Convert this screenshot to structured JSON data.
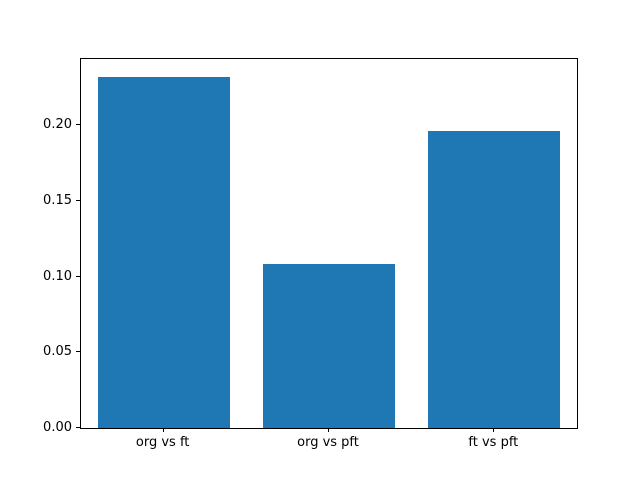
{
  "chart_data": {
    "type": "bar",
    "categories": [
      "org vs ft",
      "org vs pft",
      "ft vs pft"
    ],
    "values": [
      0.232,
      0.108,
      0.196
    ],
    "title": "",
    "xlabel": "",
    "ylabel": "",
    "ylim": [
      0,
      0.2436
    ],
    "yticks": [
      0,
      0.05,
      0.1,
      0.15,
      0.2
    ],
    "ytick_labels": [
      "0.00",
      "0.05",
      "0.10",
      "0.15",
      "0.20"
    ],
    "bar_color": "#1f77b4",
    "background_color": "#ffffff",
    "axis_color": "#000000",
    "grid": false,
    "legend_position": "none",
    "bar_width_fraction": 0.8
  }
}
